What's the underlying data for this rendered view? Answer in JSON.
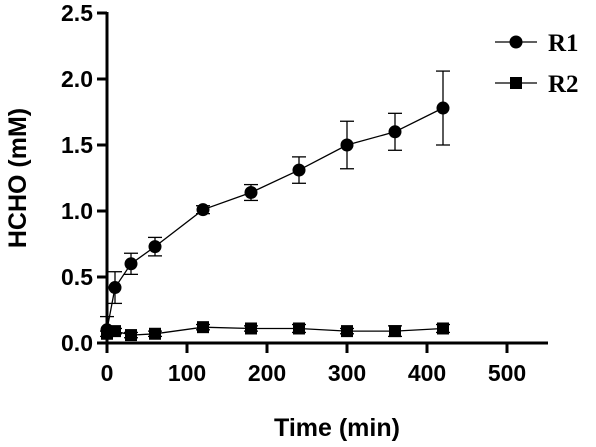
{
  "chart_data": {
    "type": "line",
    "title": "",
    "xlabel": "Time (min)",
    "ylabel": "HCHO (mM)",
    "xlim": [
      0,
      550
    ],
    "ylim": [
      0,
      2.5
    ],
    "xticks": [
      0,
      100,
      200,
      300,
      400,
      500
    ],
    "yticks": [
      0.0,
      0.5,
      1.0,
      1.5,
      2.0,
      2.5
    ],
    "xtick_labels": [
      "0",
      "100",
      "200",
      "300",
      "400",
      "500"
    ],
    "ytick_labels": [
      "0.0",
      "0.5",
      "1.0",
      "1.5",
      "2.0",
      "2.5"
    ],
    "grid": false,
    "legend": "top-right",
    "series": [
      {
        "name": "R1",
        "marker": "circle",
        "color": "#000000",
        "x": [
          0,
          10,
          30,
          60,
          120,
          180,
          240,
          300,
          360,
          420
        ],
        "y": [
          0.1,
          0.42,
          0.6,
          0.73,
          1.01,
          1.14,
          1.31,
          1.5,
          1.6,
          1.78
        ],
        "err": [
          0.1,
          0.12,
          0.08,
          0.07,
          0.03,
          0.06,
          0.1,
          0.18,
          0.14,
          0.28
        ]
      },
      {
        "name": "R2",
        "marker": "square",
        "color": "#000000",
        "x": [
          0,
          10,
          30,
          60,
          120,
          180,
          240,
          300,
          360,
          420
        ],
        "y": [
          0.07,
          0.09,
          0.06,
          0.07,
          0.12,
          0.11,
          0.11,
          0.09,
          0.09,
          0.11
        ],
        "err": [
          0.02,
          0.02,
          0.02,
          0.02,
          0.02,
          0.02,
          0.03,
          0.02,
          0.04,
          0.03
        ]
      }
    ]
  }
}
